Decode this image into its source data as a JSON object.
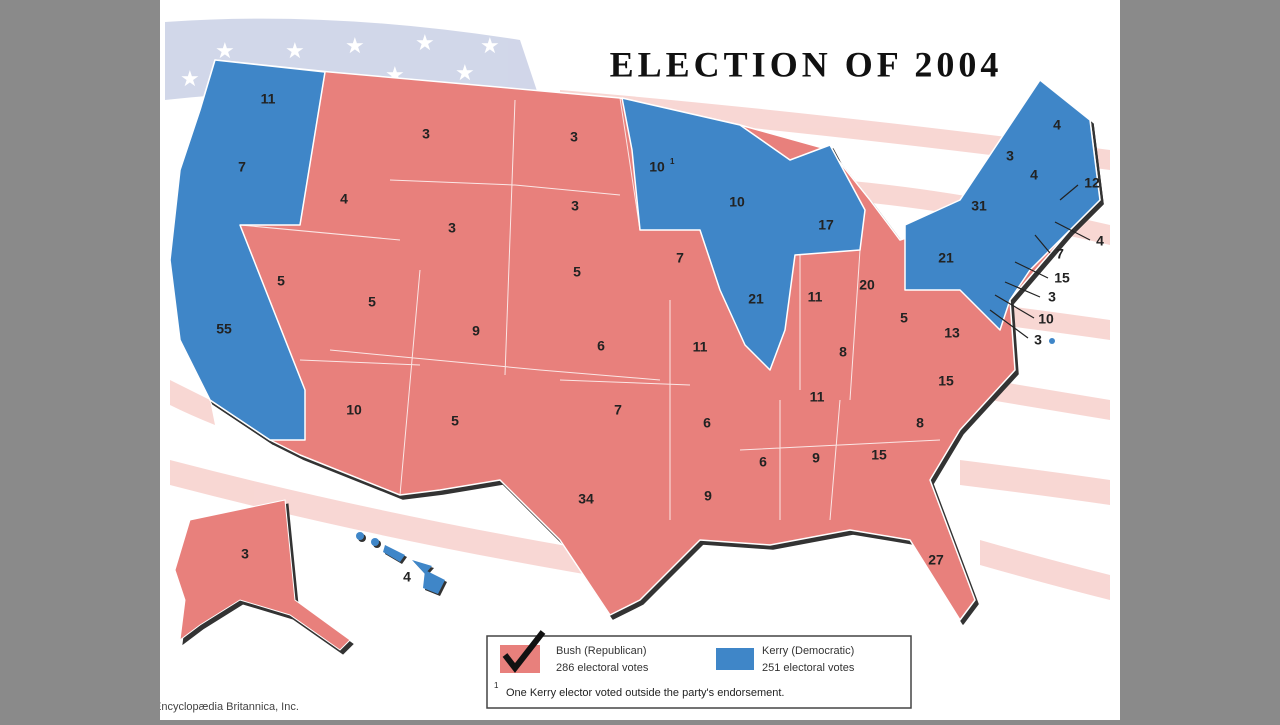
{
  "title": "ELECTION OF 2004",
  "states": [
    {
      "label": 11,
      "color": "#3f86c8"
    },
    {
      "label": 7,
      "color": "#3f86c8"
    },
    {
      "label": 55,
      "color": "#3f86c8"
    },
    {
      "label": 5,
      "color": "#e8807c"
    },
    {
      "label": 4,
      "color": "#e8807c"
    },
    {
      "label": 3,
      "color": "#e8807c"
    },
    {
      "label": 3,
      "color": "#e8807c"
    },
    {
      "label": 5,
      "color": "#e8807c"
    },
    {
      "label": 10,
      "color": "#e8807c"
    },
    {
      "label": 9,
      "color": "#e8807c"
    },
    {
      "label": 5,
      "color": "#e8807c"
    },
    {
      "label": 3,
      "color": "#e8807c"
    },
    {
      "label": 3,
      "color": "#e8807c"
    },
    {
      "label": 5,
      "color": "#e8807c"
    },
    {
      "label": 6,
      "color": "#e8807c"
    },
    {
      "label": 7,
      "color": "#e8807c"
    },
    {
      "label": 34,
      "color": "#e8807c"
    },
    {
      "label": 10,
      "footnote": 1,
      "color": "#3f86c8"
    },
    {
      "label": 7,
      "color": "#e8807c"
    },
    {
      "label": 11,
      "color": "#e8807c"
    },
    {
      "label": 6,
      "color": "#e8807c"
    },
    {
      "label": 9,
      "color": "#e8807c"
    },
    {
      "label": 10,
      "color": "#3f86c8"
    },
    {
      "label": 21,
      "color": "#3f86c8"
    },
    {
      "label": 17,
      "color": "#3f86c8"
    },
    {
      "label": 11,
      "color": "#e8807c"
    },
    {
      "label": 20,
      "color": "#e8807c"
    },
    {
      "label": 8,
      "color": "#e8807c"
    },
    {
      "label": 11,
      "color": "#e8807c"
    },
    {
      "label": 6,
      "color": "#e8807c"
    },
    {
      "label": 9,
      "color": "#e8807c"
    },
    {
      "label": 15,
      "color": "#e8807c"
    },
    {
      "label": 27,
      "color": "#e8807c"
    },
    {
      "label": 8,
      "color": "#e8807c"
    },
    {
      "label": 15,
      "color": "#e8807c"
    },
    {
      "label": 13,
      "color": "#e8807c"
    },
    {
      "label": 5,
      "color": "#e8807c"
    },
    {
      "label": 21,
      "color": "#3f86c8"
    },
    {
      "label": 31,
      "color": "#3f86c8"
    },
    {
      "label": 3,
      "color": "#3f86c8"
    },
    {
      "label": 4,
      "color": "#3f86c8"
    },
    {
      "label": 4,
      "color": "#3f86c8"
    },
    {
      "label": 12,
      "color": "#3f86c8"
    },
    {
      "label": 4,
      "color": "#3f86c8"
    },
    {
      "label": 7,
      "color": "#3f86c8"
    },
    {
      "label": 15,
      "color": "#3f86c8"
    },
    {
      "label": 3,
      "color": "#3f86c8"
    },
    {
      "label": 10,
      "color": "#3f86c8"
    },
    {
      "label": 3,
      "color": "#3f86c8"
    },
    {
      "label": 3,
      "color": "#e8807c"
    },
    {
      "label": 4,
      "color": "#3f86c8"
    }
  ],
  "legend": [
    {
      "name": "Bush (Republican)",
      "votes": "286 electoral votes",
      "color": "#e8807c"
    },
    {
      "name": "Kerry (Democratic)",
      "votes": "251 electoral votes",
      "color": "#3f86c8"
    }
  ],
  "footnote": {
    "mark": 1,
    "text": "One Kerry elector voted outside the party's endorsement."
  },
  "credit": "Encyclopædia Britannica, Inc."
}
